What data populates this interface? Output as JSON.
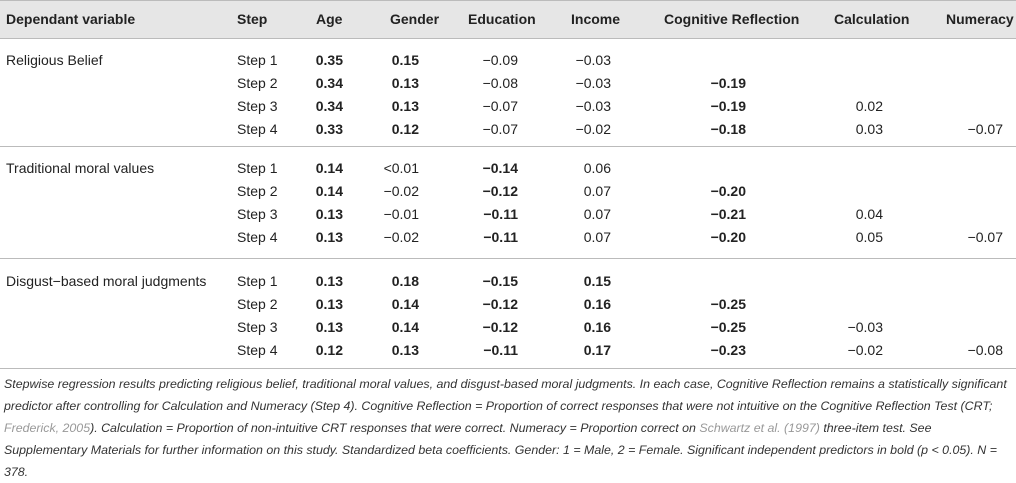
{
  "table": {
    "header": [
      "Dependant variable",
      "Step",
      "Age",
      "Gender",
      "Education",
      "Income",
      "Cognitive Reflection",
      "Calculation",
      "Numeracy"
    ],
    "groups": [
      {
        "label": "Religious Belief",
        "rows": [
          {
            "cells": [
              "Step 1",
              "0.35",
              "0.15",
              "−0.09",
              "−0.03",
              null,
              null,
              null
            ],
            "bold": [
              false,
              true,
              true,
              false,
              false,
              false,
              false,
              false
            ]
          },
          {
            "cells": [
              "Step 2",
              "0.34",
              "0.13",
              "−0.08",
              "−0.03",
              "−0.19",
              null,
              null
            ],
            "bold": [
              false,
              true,
              true,
              false,
              false,
              true,
              false,
              false
            ]
          },
          {
            "cells": [
              "Step 3",
              "0.34",
              "0.13",
              "−0.07",
              "−0.03",
              "−0.19",
              "0.02",
              null
            ],
            "bold": [
              false,
              true,
              true,
              false,
              false,
              true,
              false,
              false
            ]
          },
          {
            "cells": [
              "Step 4",
              "0.33",
              "0.12",
              "−0.07",
              "−0.02",
              "−0.18",
              "0.03",
              "−0.07"
            ],
            "bold": [
              false,
              true,
              true,
              false,
              false,
              true,
              false,
              false
            ]
          }
        ]
      },
      {
        "label": "Traditional moral values",
        "rows": [
          {
            "cells": [
              "Step 1",
              "0.14",
              "<0.01",
              "−0.14",
              "0.06",
              null,
              null,
              null
            ],
            "bold": [
              false,
              true,
              false,
              true,
              false,
              false,
              false,
              false
            ]
          },
          {
            "cells": [
              "Step 2",
              "0.14",
              "−0.02",
              "−0.12",
              "0.07",
              "−0.20",
              null,
              null
            ],
            "bold": [
              false,
              true,
              false,
              true,
              false,
              true,
              false,
              false
            ]
          },
          {
            "cells": [
              "Step 3",
              "0.13",
              "−0.01",
              "−0.11",
              "0.07",
              "−0.21",
              "0.04",
              null
            ],
            "bold": [
              false,
              true,
              false,
              true,
              false,
              true,
              false,
              false
            ]
          },
          {
            "cells": [
              "Step 4",
              "0.13",
              "−0.02",
              "−0.11",
              "0.07",
              "−0.20",
              "0.05",
              "−0.07"
            ],
            "bold": [
              false,
              true,
              false,
              true,
              false,
              true,
              false,
              false
            ]
          }
        ]
      },
      {
        "label": "Disgust−based moral judgments",
        "rows": [
          {
            "cells": [
              "Step 1",
              "0.13",
              "0.18",
              "−0.15",
              "0.15",
              null,
              null,
              null
            ],
            "bold": [
              false,
              true,
              true,
              true,
              true,
              false,
              false,
              false
            ]
          },
          {
            "cells": [
              "Step 2",
              "0.13",
              "0.14",
              "−0.12",
              "0.16",
              "−0.25",
              null,
              null
            ],
            "bold": [
              false,
              true,
              true,
              true,
              true,
              true,
              false,
              false
            ]
          },
          {
            "cells": [
              "Step 3",
              "0.13",
              "0.14",
              "−0.12",
              "0.16",
              "−0.25",
              "−0.03",
              null
            ],
            "bold": [
              false,
              true,
              true,
              true,
              true,
              true,
              false,
              false
            ]
          },
          {
            "cells": [
              "Step 4",
              "0.12",
              "0.13",
              "−0.11",
              "0.17",
              "−0.23",
              "−0.02",
              "−0.08"
            ],
            "bold": [
              false,
              true,
              true,
              true,
              true,
              true,
              false,
              false
            ]
          }
        ]
      }
    ],
    "footnote": [
      "Stepwise regression results predicting religious belief, traditional moral values, and disgust-based moral judgments. In each case, Cognitive Reflection remains a statistically significant predictor after controlling for Calculation and Numeracy (Step 4). Cognitive Reflection = Proportion of correct responses that were not intuitive on the Cognitive Reflection Test (CRT; ",
      "Frederick, 2005",
      "). Calculation = Proportion of non-intuitive CRT responses that were correct. Numeracy = Proportion correct on ",
      "Schwartz et al. (1997)",
      " three-item test. See Supplementary Materials for further information on this study. Standardized beta coefficients. Gender: 1 = Male, 2 = Female. Significant independent predictors in bold (p < 0.05). N = 378."
    ]
  }
}
